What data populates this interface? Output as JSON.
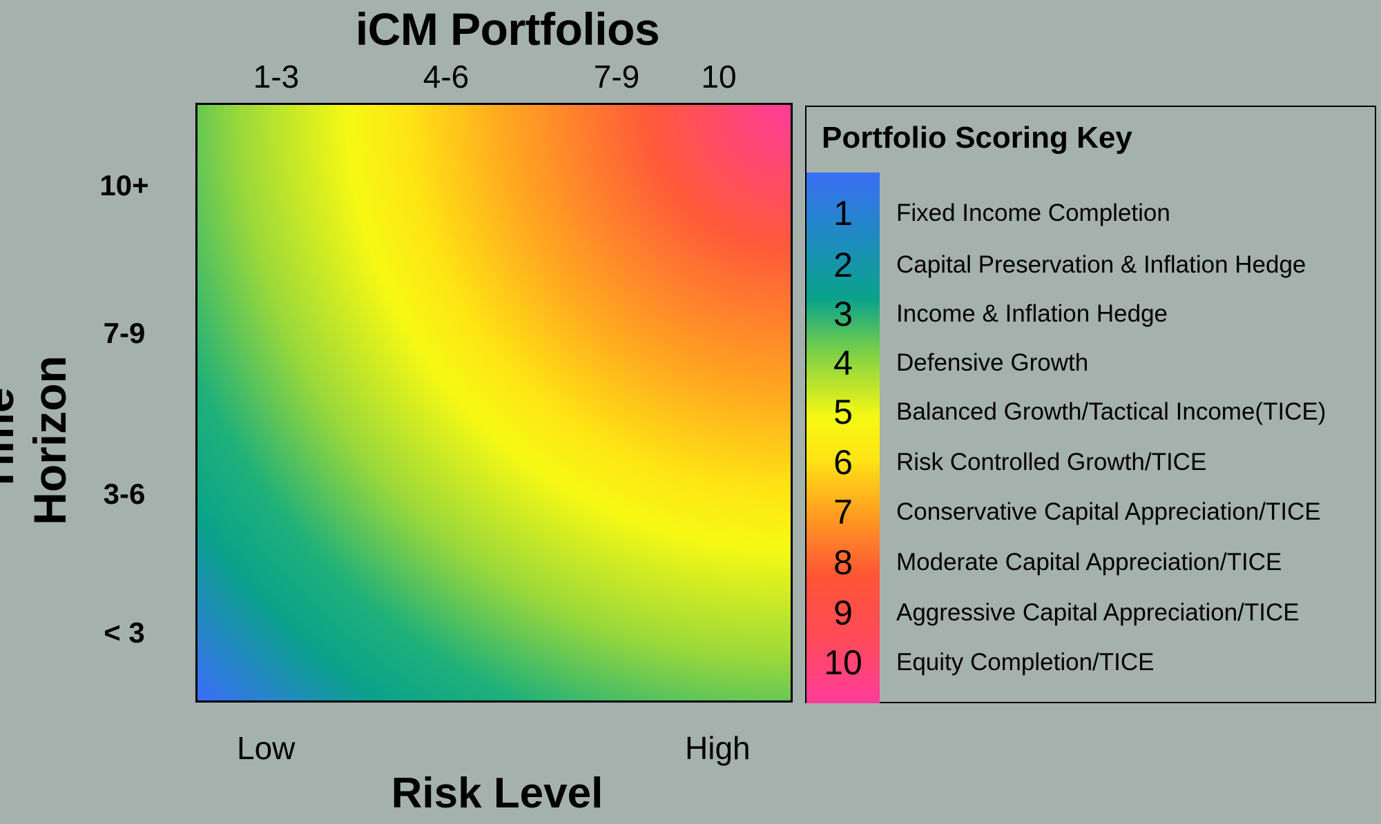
{
  "chart_data": {
    "type": "heatmap",
    "title": "iCM Portfolios",
    "x_axis": {
      "label": "Risk Level",
      "end_labels": [
        "Low",
        "High"
      ],
      "categories": [
        "1-3",
        "4-6",
        "7-9",
        "10"
      ]
    },
    "y_axis": {
      "label": "Time Horizon",
      "categories": [
        "10+",
        "7-9",
        "3-6",
        "< 3"
      ]
    },
    "color_scale": "blue (low risk, short horizon) through green, yellow, orange, red to pink (high risk, long horizon)",
    "legend": {
      "title": "Portfolio Scoring Key",
      "placement": "right",
      "items": [
        {
          "score": "1",
          "label": "Fixed Income Completion",
          "color": "#3a6ef5"
        },
        {
          "score": "2",
          "label": "Capital Preservation & Inflation Hedge",
          "color": "#1a8fb8"
        },
        {
          "score": "3",
          "label": "Income & Inflation Hedge",
          "color": "#0aa38a"
        },
        {
          "score": "4",
          "label": "Defensive Growth",
          "color": "#7dd046"
        },
        {
          "score": "5",
          "label": "Balanced Growth/Tactical Income(TICE)",
          "color": "#f6f914"
        },
        {
          "score": "6",
          "label": "Risk Controlled Growth/TICE",
          "color": "#ffe514"
        },
        {
          "score": "7",
          "label": "Conservative Capital Appreciation/TICE",
          "color": "#ffa020"
        },
        {
          "score": "8",
          "label": "Moderate Capital Appreciation/TICE",
          "color": "#ff5535"
        },
        {
          "score": "9",
          "label": "Aggressive Capital Appreciation/TICE",
          "color": "#ff4a5a"
        },
        {
          "score": "10",
          "label": "Equity Completion/TICE",
          "color": "#ff3c9b"
        }
      ]
    }
  }
}
